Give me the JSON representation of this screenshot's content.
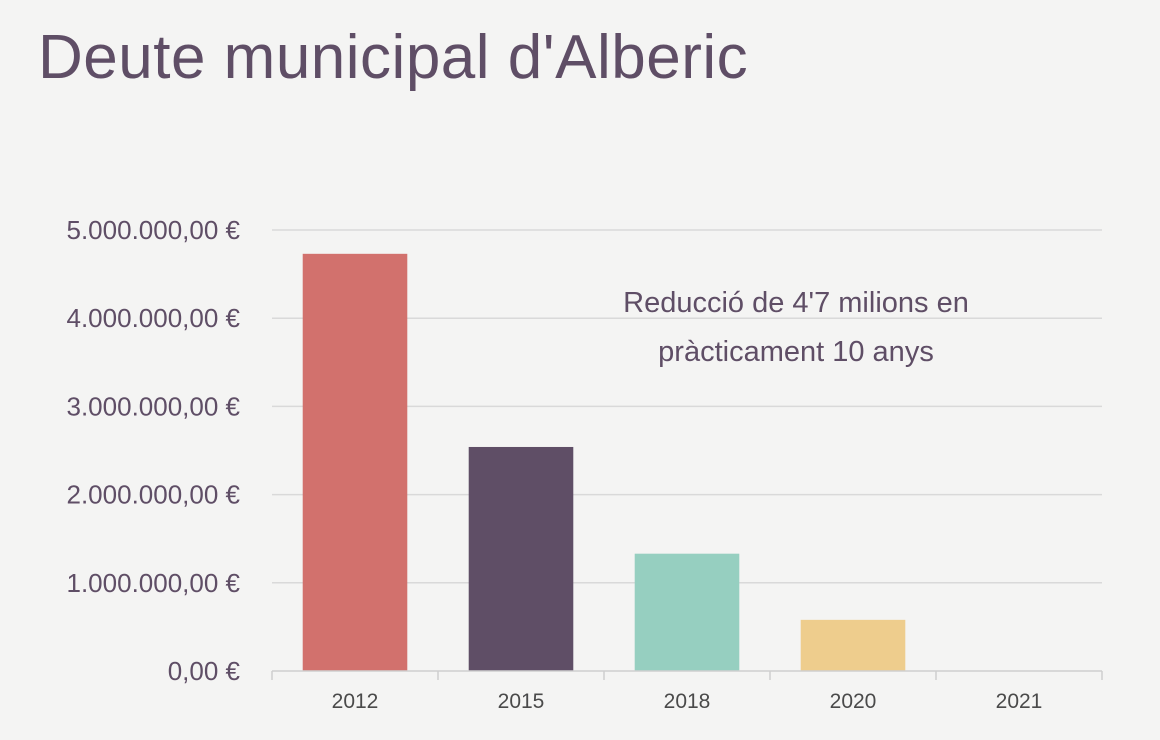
{
  "title": "Deute municipal d'Alberic",
  "chart_data": {
    "type": "bar",
    "categories": [
      "2012",
      "2015",
      "2018",
      "2020",
      "2021"
    ],
    "values": [
      4730000,
      2540000,
      1330000,
      580000,
      0
    ],
    "colors": [
      "#d2716d",
      "#5f4e66",
      "#96cfc0",
      "#eecd8d",
      "#cccccc"
    ],
    "ylim": [
      0,
      5000000
    ],
    "yticks": [
      0,
      1000000,
      2000000,
      3000000,
      4000000,
      5000000
    ],
    "ytick_labels": [
      "0,00 €",
      "1.000.000,00 €",
      "2.000.000,00 €",
      "3.000.000,00 €",
      "4.000.000,00 €",
      "5.000.000,00 €"
    ],
    "grid": true,
    "annotation": [
      "Reducció de 4'7 milions en",
      "pràcticament 10 anys"
    ]
  }
}
